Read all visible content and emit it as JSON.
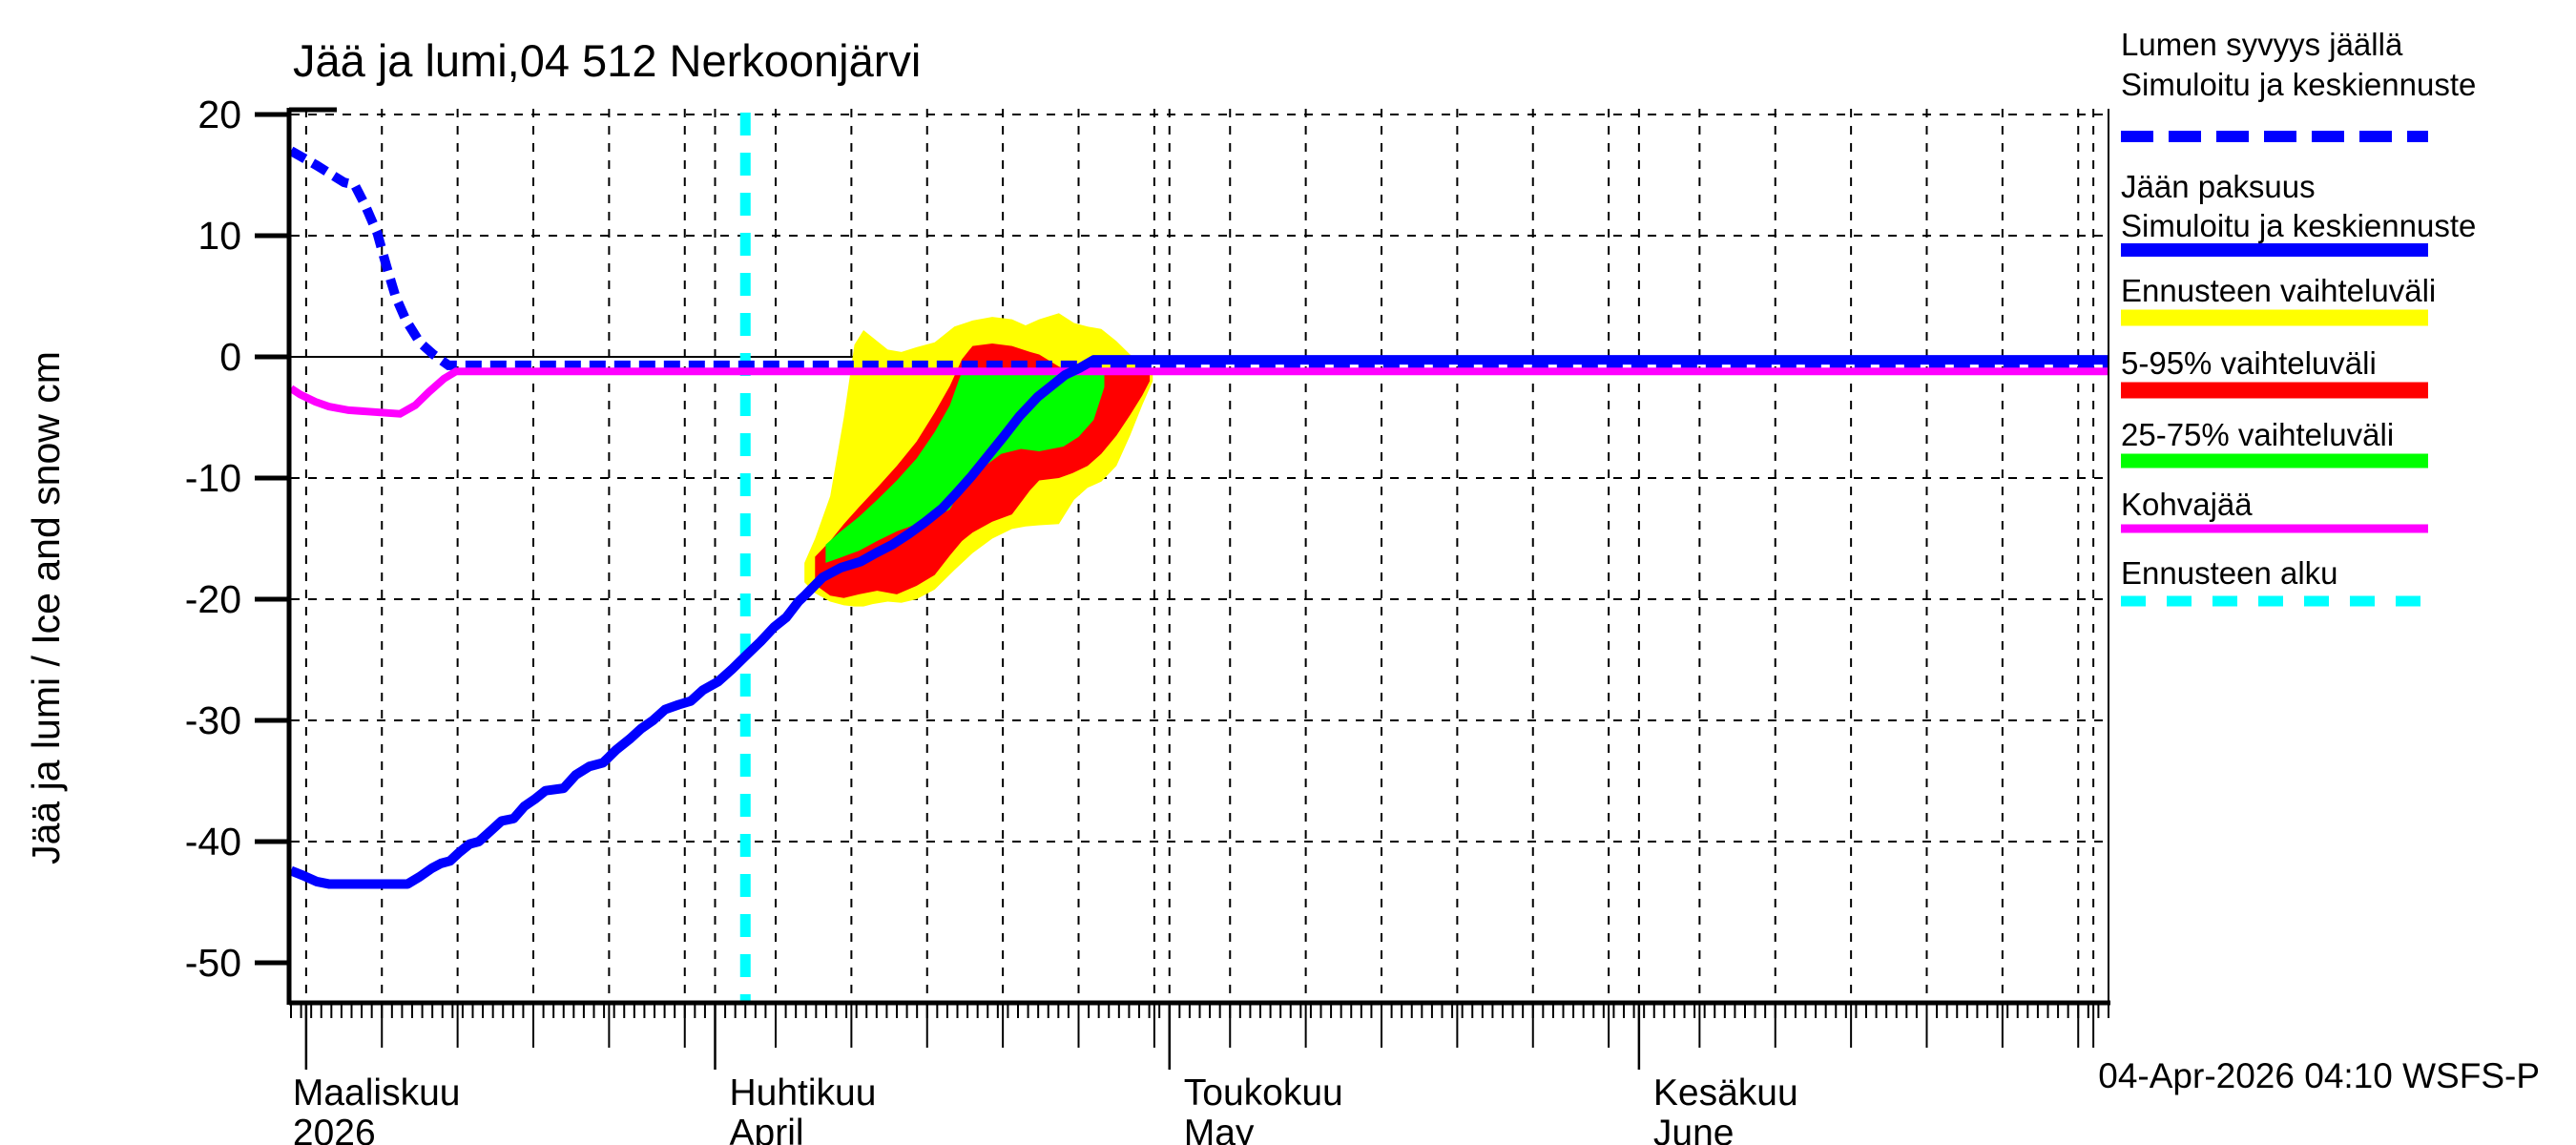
{
  "title": "Jää ja lumi,04 512 Nerkoonjärvi",
  "footer": "04-Apr-2026 04:10 WSFS-P",
  "y_axis": {
    "label": "Jää ja lumi / Ice and snow    cm",
    "unit": "cm",
    "tick_values": [
      20,
      10,
      0,
      -10,
      -20,
      -30,
      -40,
      -50
    ],
    "grid_values": [
      20,
      10,
      -10,
      -20,
      -30,
      -40
    ],
    "zero_line": 0,
    "min": -54,
    "max": 20
  },
  "x_axis": {
    "start_date": "2026-03-04",
    "end_date": "2026-07-02",
    "x_unit": "days since 2026-03-04",
    "months": [
      {
        "label1": "Maaliskuu",
        "label2": "2026",
        "tick_day": 1,
        "label_offset": -14
      },
      {
        "label1": "Huhtikuu",
        "label2": "April",
        "tick_day": 28,
        "label_offset": 15
      },
      {
        "label1": "Toukokuu",
        "label2": "May",
        "tick_day": 58,
        "label_offset": 15
      },
      {
        "label1": "Kesäkuu",
        "label2": "June",
        "tick_day": 89,
        "label_offset": 15
      }
    ],
    "month_tick_days": [
      1,
      28,
      58,
      89
    ],
    "grid_days": [
      1,
      6,
      11,
      16,
      21,
      26,
      28,
      32,
      37,
      42,
      47,
      52,
      57,
      58,
      62,
      67,
      72,
      77,
      82,
      87,
      89,
      93,
      98,
      103,
      108,
      113,
      118,
      119
    ],
    "medium_tick_days": [
      6,
      11,
      16,
      21,
      26,
      32,
      37,
      42,
      47,
      52,
      57,
      62,
      67,
      72,
      77,
      82,
      87,
      93,
      98,
      103,
      108,
      113,
      118,
      119
    ]
  },
  "colors": {
    "snow": "#0000ff",
    "ice": "#0000ff",
    "forecast_range": "#ffff00",
    "range_5_95": "#ff0000",
    "range_25_75": "#00ff00",
    "kohvajaa": "#ff00ff",
    "forecast_start": "#00ffff",
    "grid": "#000000",
    "background": "#ffffff"
  },
  "legend": {
    "items": [
      {
        "line1": "Lumen syvyys jäällä",
        "line2": "Simuloitu ja keskiennuste",
        "swatch": "blue-dashed-line"
      },
      {
        "line1": "Jään paksuus",
        "line2": "Simuloitu ja keskiennuste",
        "swatch": "blue-solid-line"
      },
      {
        "line1": "Ennusteen vaihteluväli",
        "line2": "",
        "swatch": "yellow-band"
      },
      {
        "line1": "5-95% vaihteluväli",
        "line2": "",
        "swatch": "red-band"
      },
      {
        "line1": "25-75% vaihteluväli",
        "line2": "",
        "swatch": "green-band"
      },
      {
        "line1": "Kohvajää",
        "line2": "",
        "swatch": "magenta-line"
      },
      {
        "line1": "Ennusteen alku",
        "line2": "",
        "swatch": "cyan-dashed-line"
      }
    ]
  },
  "chart_data": {
    "type": "line",
    "title": "Jää ja lumi,04 512 Nerkoonjärvi",
    "xlabel": "2026-03-04 .. 2026-07-02 (days since 2026-03-04)",
    "ylabel": "Jää ja lumi / Ice and snow  cm",
    "ylim": [
      -54,
      20
    ],
    "grid": true,
    "legend_position": "right-outside",
    "forecast_start_day": 30,
    "series": [
      {
        "name": "Lumen syvyys jäällä (simuloitu ja keskiennuste)",
        "style": "dashed",
        "color": "#0000ff",
        "points": [
          [
            0,
            17.0
          ],
          [
            1.7,
            15.8
          ],
          [
            3.5,
            14.4
          ],
          [
            4.2,
            14.2
          ],
          [
            4.9,
            12.5
          ],
          [
            5.7,
            10.2
          ],
          [
            6.3,
            7.5
          ],
          [
            6.9,
            5.0
          ],
          [
            7.6,
            3.0
          ],
          [
            8.5,
            1.2
          ],
          [
            9.4,
            0.2
          ],
          [
            10.4,
            -0.7
          ],
          [
            120,
            -0.7
          ]
        ]
      },
      {
        "name": "Jään paksuus (simuloitu ja keskiennuste)",
        "style": "solid",
        "color": "#0000ff",
        "points": [
          [
            0,
            -42.4
          ],
          [
            0.8,
            -42.8
          ],
          [
            1.7,
            -43.3
          ],
          [
            2.5,
            -43.5
          ],
          [
            7.7,
            -43.5
          ],
          [
            8.5,
            -42.9
          ],
          [
            9.3,
            -42.2
          ],
          [
            9.9,
            -41.8
          ],
          [
            10.5,
            -41.6
          ],
          [
            11.1,
            -40.9
          ],
          [
            11.8,
            -40.2
          ],
          [
            12.4,
            -40.0
          ],
          [
            13.2,
            -39.1
          ],
          [
            13.9,
            -38.3
          ],
          [
            14.7,
            -38.1
          ],
          [
            15.4,
            -37.1
          ],
          [
            16.1,
            -36.5
          ],
          [
            16.8,
            -35.8
          ],
          [
            18.0,
            -35.6
          ],
          [
            18.8,
            -34.5
          ],
          [
            19.7,
            -33.8
          ],
          [
            20.6,
            -33.5
          ],
          [
            21.5,
            -32.4
          ],
          [
            22.4,
            -31.5
          ],
          [
            23.1,
            -30.7
          ],
          [
            23.9,
            -30.0
          ],
          [
            24.7,
            -29.1
          ],
          [
            25.6,
            -28.7
          ],
          [
            26.4,
            -28.4
          ],
          [
            27.2,
            -27.5
          ],
          [
            28.2,
            -26.8
          ],
          [
            29.1,
            -25.8
          ],
          [
            30.0,
            -24.7
          ],
          [
            31.0,
            -23.5
          ],
          [
            31.9,
            -22.3
          ],
          [
            32.7,
            -21.5
          ],
          [
            33.5,
            -20.2
          ],
          [
            34.0,
            -19.6
          ],
          [
            35.1,
            -18.2
          ],
          [
            36.3,
            -17.4
          ],
          [
            37.6,
            -16.9
          ],
          [
            38.6,
            -16.2
          ],
          [
            39.7,
            -15.5
          ],
          [
            40.8,
            -14.6
          ],
          [
            41.8,
            -13.7
          ],
          [
            43.0,
            -12.5
          ],
          [
            43.9,
            -11.3
          ],
          [
            44.9,
            -9.9
          ],
          [
            46.0,
            -8.2
          ],
          [
            47.1,
            -6.5
          ],
          [
            48.1,
            -4.9
          ],
          [
            49.3,
            -3.3
          ],
          [
            50.2,
            -2.4
          ],
          [
            51.1,
            -1.5
          ],
          [
            52.1,
            -0.9
          ],
          [
            53.0,
            -0.25
          ],
          [
            120,
            -0.25
          ]
        ]
      },
      {
        "name": "Kohvajää",
        "style": "solid",
        "color": "#ff00ff",
        "points": [
          [
            0,
            -2.6
          ],
          [
            0.6,
            -3.1
          ],
          [
            1.6,
            -3.7
          ],
          [
            2.5,
            -4.1
          ],
          [
            3.8,
            -4.4
          ],
          [
            7.2,
            -4.7
          ],
          [
            8.2,
            -4.0
          ],
          [
            9.1,
            -2.9
          ],
          [
            10.1,
            -1.8
          ],
          [
            10.9,
            -1.2
          ],
          [
            120,
            -1.2
          ]
        ]
      }
    ],
    "bands": [
      {
        "name": "Ennusteen vaihteluväli",
        "color": "#ffff00",
        "points": [
          [
            33.9,
            -17.0,
            -18.6
          ],
          [
            34.6,
            -15.0,
            -19.5
          ],
          [
            35.6,
            -11.5,
            -20.2
          ],
          [
            36.5,
            -5.0,
            -20.5
          ],
          [
            37.2,
            1.0,
            -20.6
          ],
          [
            37.8,
            2.2,
            -20.6
          ],
          [
            38.4,
            1.6,
            -20.4
          ],
          [
            39.4,
            0.6,
            -20.2
          ],
          [
            40.3,
            0.4,
            -20.3
          ],
          [
            41.3,
            0.8,
            -20.0
          ],
          [
            42.5,
            1.2,
            -19.2
          ],
          [
            43.8,
            2.5,
            -17.6
          ],
          [
            45.0,
            3.0,
            -16.2
          ],
          [
            46.3,
            3.3,
            -15.0
          ],
          [
            47.6,
            3.1,
            -14.2
          ],
          [
            48.5,
            2.6,
            -14.0
          ],
          [
            49.4,
            3.1,
            -13.9
          ],
          [
            50.7,
            3.6,
            -13.8
          ],
          [
            51.7,
            2.8,
            -11.8
          ],
          [
            52.6,
            2.5,
            -10.8
          ],
          [
            53.5,
            2.3,
            -10.3
          ],
          [
            54.5,
            1.3,
            -9.0
          ],
          [
            55.4,
            0.2,
            -6.5
          ],
          [
            56.2,
            -0.5,
            -4.0
          ],
          [
            56.9,
            -1.2,
            -2.0
          ]
        ]
      },
      {
        "name": "5-95% vaihteluväli",
        "color": "#ff0000",
        "points": [
          [
            34.6,
            -16.5,
            -18.8
          ],
          [
            35.6,
            -15.2,
            -19.7
          ],
          [
            36.5,
            -13.8,
            -19.9
          ],
          [
            37.5,
            -12.4,
            -19.6
          ],
          [
            38.7,
            -10.8,
            -19.3
          ],
          [
            40.0,
            -9.0,
            -19.6
          ],
          [
            41.3,
            -7.0,
            -18.9
          ],
          [
            42.5,
            -4.6,
            -18.0
          ],
          [
            43.5,
            -2.4,
            -16.4
          ],
          [
            44.3,
            -0.2,
            -15.2
          ],
          [
            45.0,
            0.9,
            -14.5
          ],
          [
            46.3,
            1.1,
            -13.6
          ],
          [
            47.6,
            0.9,
            -13.0
          ],
          [
            48.8,
            0.4,
            -11.0
          ],
          [
            49.4,
            0.2,
            -10.2
          ],
          [
            50.7,
            -0.8,
            -10.0
          ],
          [
            51.6,
            -1.3,
            -9.6
          ],
          [
            52.6,
            -1.3,
            -9.0
          ],
          [
            53.5,
            -1.3,
            -8.0
          ],
          [
            54.5,
            -1.3,
            -6.5
          ],
          [
            55.4,
            -1.3,
            -4.8
          ],
          [
            56.2,
            -1.4,
            -3.2
          ],
          [
            56.7,
            -1.5,
            -2.0
          ]
        ]
      },
      {
        "name": "25-75% vaihteluväli",
        "color": "#00ff00",
        "points": [
          [
            35.3,
            -15.5,
            -17.0
          ],
          [
            36.2,
            -14.5,
            -16.6
          ],
          [
            37.5,
            -13.2,
            -16.0
          ],
          [
            38.7,
            -11.8,
            -15.2
          ],
          [
            40.0,
            -10.2,
            -14.4
          ],
          [
            41.3,
            -8.4,
            -13.8
          ],
          [
            42.5,
            -6.2,
            -13.2
          ],
          [
            43.5,
            -4.0,
            -12.6
          ],
          [
            44.3,
            -1.2,
            -10.8
          ],
          [
            45.6,
            -1.0,
            -9.2
          ],
          [
            46.9,
            -1.0,
            -8.0
          ],
          [
            48.2,
            -1.0,
            -7.6
          ],
          [
            49.4,
            -1.0,
            -7.8
          ],
          [
            51.0,
            -1.0,
            -7.4
          ],
          [
            52.0,
            -1.0,
            -6.6
          ],
          [
            53.0,
            -1.0,
            -5.2
          ],
          [
            53.7,
            -1.0,
            -2.5
          ]
        ]
      }
    ]
  }
}
